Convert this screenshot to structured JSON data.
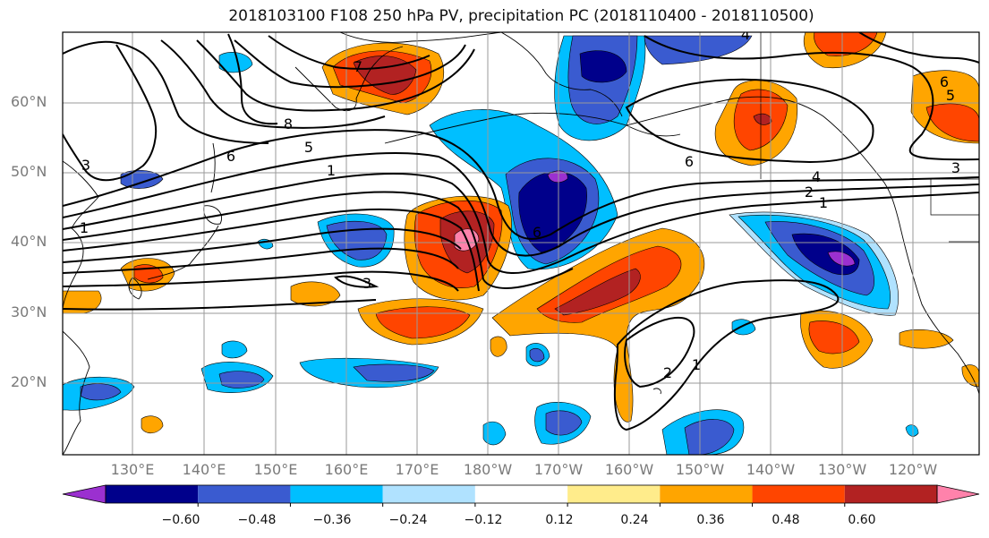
{
  "title": "2018103100 F108 250 hPa PV, precipitation PC (2018110400 - 2018110500)",
  "lat_labels": [
    "60°N",
    "50°N",
    "40°N",
    "30°N",
    "20°N"
  ],
  "lon_labels": [
    "130°E",
    "140°E",
    "150°E",
    "160°E",
    "170°E",
    "180°W",
    "170°W",
    "160°W",
    "150°W",
    "140°W",
    "130°W",
    "120°W"
  ],
  "colorbar": {
    "tick_labels": [
      "−0.60",
      "−0.48",
      "−0.36",
      "−0.24",
      "−0.12",
      "0.12",
      "0.24",
      "0.36",
      "0.48",
      "0.60"
    ],
    "colors": [
      "#9b30d0",
      "#00008b",
      "#3a5bd0",
      "#00bfff",
      "#b0e2ff",
      "#ffffff",
      "#ffec8b",
      "#ffa500",
      "#ff4500",
      "#b22222",
      "#ff82ab"
    ]
  },
  "contour_labels": [
    "3",
    "1",
    "6",
    "8",
    "7",
    "5",
    "1",
    "3",
    "6",
    "6",
    "4",
    "2",
    "1",
    "6",
    "5",
    "3",
    "2",
    "1",
    "4"
  ]
}
